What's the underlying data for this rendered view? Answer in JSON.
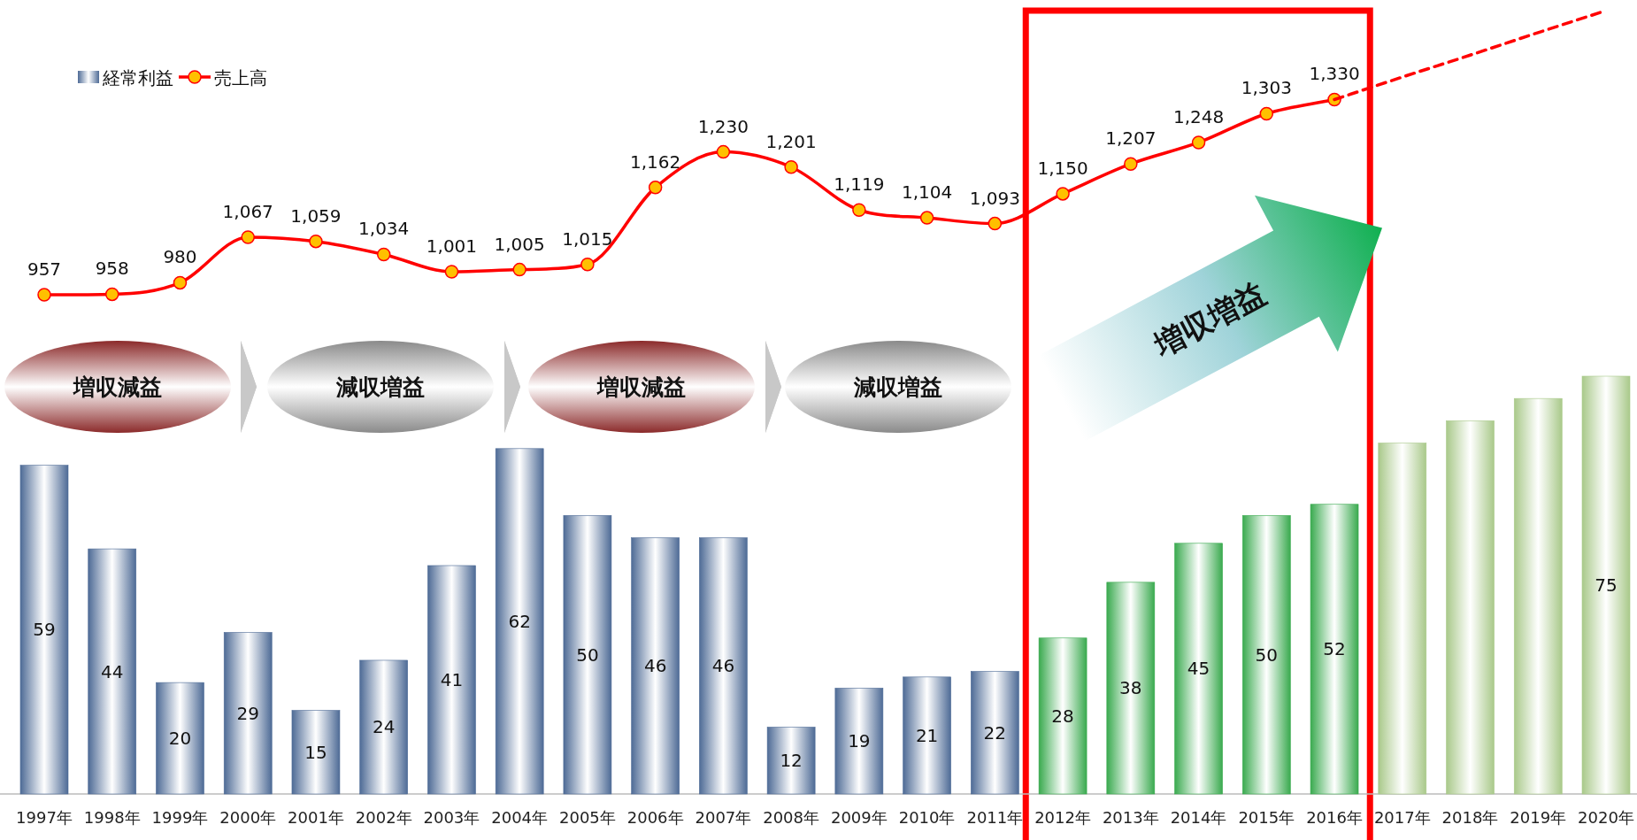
{
  "chart_data": [
    {
      "type": "line",
      "categories": [
        null,
        null,
        null,
        null,
        null,
        null,
        null,
        null,
        null,
        null,
        null,
        null,
        null,
        null,
        null,
        null,
        null,
        null,
        null,
        null,
        null,
        null,
        null,
        null
      ],
      "legend": "top left",
      "series": [
        {
          "name": "売上高",
          "color": "#ff0000",
          "marker": "circle",
          "values": [
            957,
            958,
            980,
            1067,
            1059,
            1034,
            1001,
            1005,
            1015,
            1162,
            1230,
            1201,
            1119,
            1104,
            1093,
            1150,
            1207,
            1248,
            1303,
            1330,
            null,
            null,
            null,
            null
          ],
          "value_labels": [
            "957",
            "958",
            "980",
            "1,067",
            "1,059",
            "1,034",
            "1,001",
            "1,005",
            "1,015",
            "1,162",
            "1,230",
            "1,201",
            "1,119",
            "1,104",
            "1,093",
            "1,150",
            "1,207",
            "1,248",
            "1,303",
            "1,330",
            null,
            null,
            null,
            null
          ]
        },
        {
          "color": "#ff0000",
          "line_style": "dashed",
          "values": [
            null,
            null,
            null,
            null,
            null,
            null,
            null,
            null,
            null,
            null,
            null,
            null,
            null,
            null,
            null,
            null,
            null,
            null,
            null,
            1330,
            1373,
            1415,
            1458,
            1500
          ]
        }
      ]
    },
    {
      "type": "bar",
      "categories": [
        "1997年",
        "1998年",
        "1999年",
        "2000年",
        "2001年",
        "2002年",
        "2003年",
        "2004年",
        "2005年",
        "2006年",
        "2007年",
        "2008年",
        "2009年",
        "2010年",
        "2011年",
        "2012年",
        "2013年",
        "2014年",
        "2015年",
        "2016年",
        "2017年",
        "2018年",
        "2019年",
        "2020年"
      ],
      "series": [
        {
          "name": "経常利益",
          "colors": [
            "#4e6b96",
            "#4e6b96",
            "#4e6b96",
            "#4e6b96",
            "#4e6b96",
            "#4e6b96",
            "#4e6b96",
            "#4e6b96",
            "#4e6b96",
            "#4e6b96",
            "#4e6b96",
            "#4e6b96",
            "#4e6b96",
            "#4e6b96",
            "#4e6b96",
            "#3aaa4f",
            "#3aaa4f",
            "#3aaa4f",
            "#3aaa4f",
            "#3aaa4f",
            "#a9c98a",
            "#a9c98a",
            "#a9c98a",
            "#a9c98a"
          ],
          "values": [
            59,
            44,
            20,
            29,
            15,
            24,
            41,
            62,
            50,
            46,
            46,
            12,
            19,
            21,
            22,
            28,
            38,
            45,
            50,
            52,
            63,
            67,
            71,
            75
          ],
          "value_labels": [
            "59",
            "44",
            "20",
            "29",
            "15",
            "24",
            "41",
            "62",
            "50",
            "46",
            "46",
            "12",
            "19",
            "21",
            "22",
            "28",
            "38",
            "45",
            "50",
            "52",
            null,
            null,
            null,
            "75"
          ]
        }
      ],
      "annotations": [
        "増収減益",
        "減収増益",
        "増収減益",
        "減収増益",
        "増収増益"
      ]
    }
  ]
}
